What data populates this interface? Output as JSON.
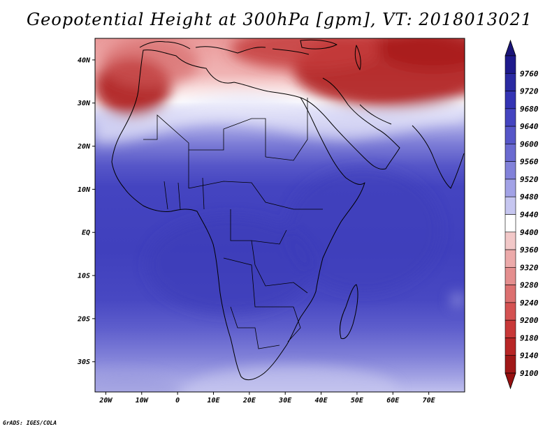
{
  "title": "Geopotential Height at 300hPa [gpm], VT: 2018013021",
  "credit": "GrADS: IGES/COLA",
  "map": {
    "lon_range": [
      -23,
      80
    ],
    "lat_range": [
      -37,
      45
    ],
    "lon_ticks": [
      {
        "value": -20,
        "label": "20W"
      },
      {
        "value": -10,
        "label": "10W"
      },
      {
        "value": 0,
        "label": "0"
      },
      {
        "value": 10,
        "label": "10E"
      },
      {
        "value": 20,
        "label": "20E"
      },
      {
        "value": 30,
        "label": "30E"
      },
      {
        "value": 40,
        "label": "40E"
      },
      {
        "value": 50,
        "label": "50E"
      },
      {
        "value": 60,
        "label": "60E"
      },
      {
        "value": 70,
        "label": "70E"
      }
    ],
    "lat_ticks": [
      {
        "value": 40,
        "label": "40N"
      },
      {
        "value": 30,
        "label": "30N"
      },
      {
        "value": 20,
        "label": "20N"
      },
      {
        "value": 10,
        "label": "10N"
      },
      {
        "value": 0,
        "label": "EQ"
      },
      {
        "value": -10,
        "label": "10S"
      },
      {
        "value": -20,
        "label": "20S"
      },
      {
        "value": -30,
        "label": "30S"
      }
    ]
  },
  "colorbar": {
    "levels": [
      {
        "label": "9760",
        "color": "#1e1a8c"
      },
      {
        "label": "9720",
        "color": "#2a2aa2"
      },
      {
        "label": "9680",
        "color": "#3434b4"
      },
      {
        "label": "9640",
        "color": "#4444c0"
      },
      {
        "label": "9600",
        "color": "#5656c8"
      },
      {
        "label": "9560",
        "color": "#6a6ad0"
      },
      {
        "label": "9520",
        "color": "#8282da"
      },
      {
        "label": "9480",
        "color": "#a2a2e6"
      },
      {
        "label": "9440",
        "color": "#c6c6f0"
      },
      {
        "label": "9400",
        "color": "#ffffff"
      },
      {
        "label": "9360",
        "color": "#f2c8c8"
      },
      {
        "label": "9320",
        "color": "#ec aaaa"
      },
      {
        "label": "9280",
        "color": "#e48e8e"
      },
      {
        "label": "9240",
        "color": "#dc7070"
      },
      {
        "label": "9200",
        "color": "#d45252"
      },
      {
        "label": "9180",
        "color": "#c83838"
      },
      {
        "label": "9140",
        "color": "#b82626"
      },
      {
        "label": "9100",
        "color": "#a01818"
      }
    ],
    "top_arrow_color": "#1a1478",
    "bottom_arrow_color": "#961010"
  }
}
